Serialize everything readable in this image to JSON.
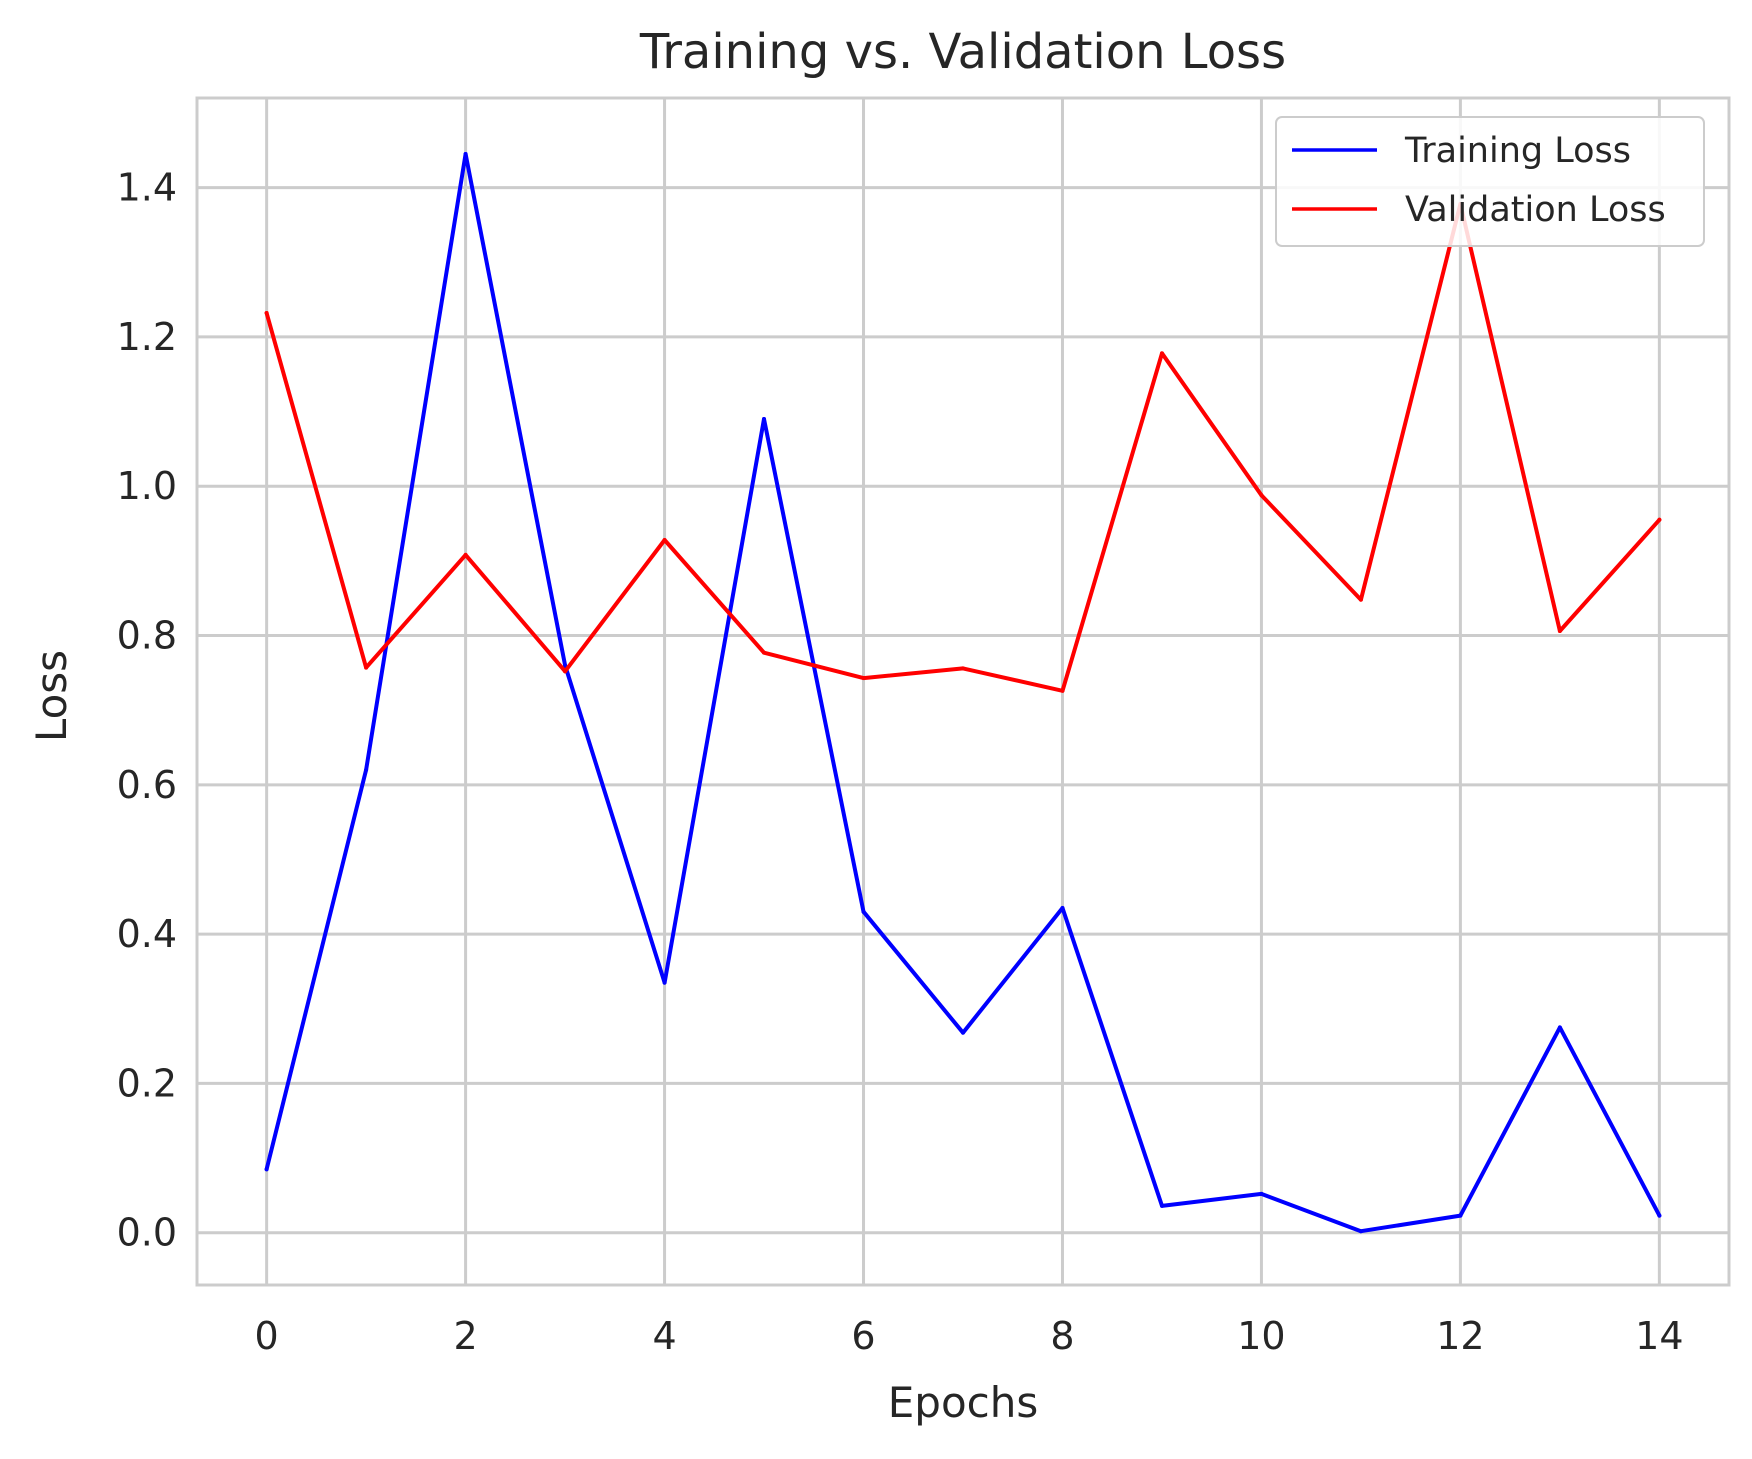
{
  "chart_data": {
    "type": "line",
    "title": "Training vs. Validation Loss",
    "xlabel": "Epochs",
    "ylabel": "Loss",
    "x": [
      0,
      1,
      2,
      3,
      4,
      5,
      6,
      7,
      8,
      9,
      10,
      11,
      12,
      13,
      14
    ],
    "xlim": [
      -0.7,
      14.7
    ],
    "ylim": [
      -0.07,
      1.52
    ],
    "x_ticks": [
      0,
      2,
      4,
      6,
      8,
      10,
      12,
      14
    ],
    "x_tick_labels": [
      "0",
      "2",
      "4",
      "6",
      "8",
      "10",
      "12",
      "14"
    ],
    "y_ticks": [
      0.0,
      0.2,
      0.4,
      0.6,
      0.8,
      1.0,
      1.2,
      1.4
    ],
    "y_tick_labels": [
      "0.0",
      "0.2",
      "0.4",
      "0.6",
      "0.8",
      "1.0",
      "1.2",
      "1.4"
    ],
    "grid": true,
    "legend_position": "top-right",
    "series": [
      {
        "name": "Training Loss",
        "color": "#0000ff",
        "values": [
          0.085,
          0.62,
          1.445,
          0.76,
          0.335,
          1.09,
          0.43,
          0.268,
          0.435,
          0.036,
          0.052,
          0.002,
          0.023,
          0.275,
          0.023
        ]
      },
      {
        "name": "Validation Loss",
        "color": "#ff0000",
        "values": [
          1.232,
          0.757,
          0.908,
          0.752,
          0.928,
          0.777,
          0.743,
          0.756,
          0.726,
          1.178,
          0.988,
          0.848,
          1.378,
          0.806,
          0.955
        ]
      }
    ]
  }
}
